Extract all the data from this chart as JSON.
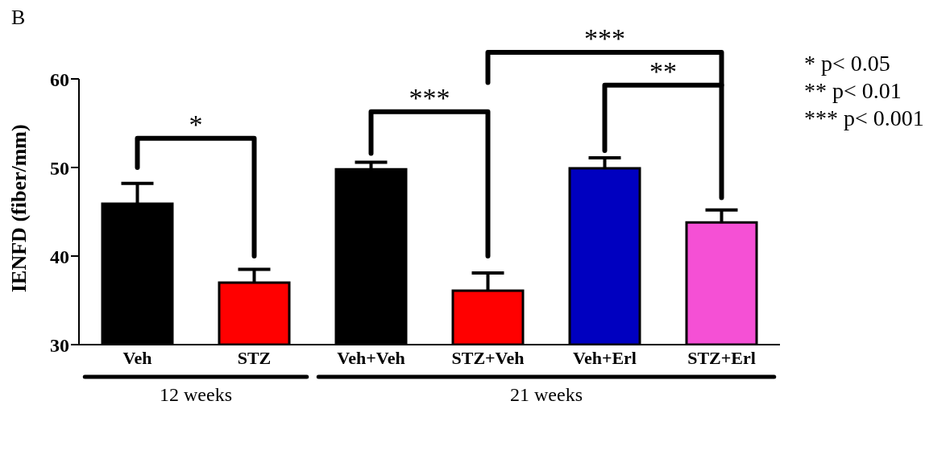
{
  "chart_data": {
    "type": "bar",
    "ylabel": "IENFD (fiber/mm)",
    "categories": [
      "Veh",
      "STZ",
      "Veh+Veh",
      "STZ+Veh",
      "Veh+Erl",
      "STZ+Erl"
    ],
    "values": [
      45.9,
      37.0,
      49.8,
      36.1,
      49.9,
      43.8
    ],
    "errors": [
      2.3,
      1.5,
      0.8,
      2.0,
      1.2,
      1.4
    ],
    "colors": [
      "#000000",
      "#ff0000",
      "#000000",
      "#ff0000",
      "#0000c0",
      "#f550d5"
    ],
    "ylim": [
      30,
      60
    ],
    "yticks": [
      30,
      40,
      50,
      60
    ],
    "grid": false,
    "legend": false,
    "annotations": [
      "B",
      "*",
      "***",
      "***",
      "**",
      "* p< 0.05",
      "** p< 0.01",
      "*** p< 0.001",
      "12 weeks",
      "21 weeks"
    ]
  }
}
